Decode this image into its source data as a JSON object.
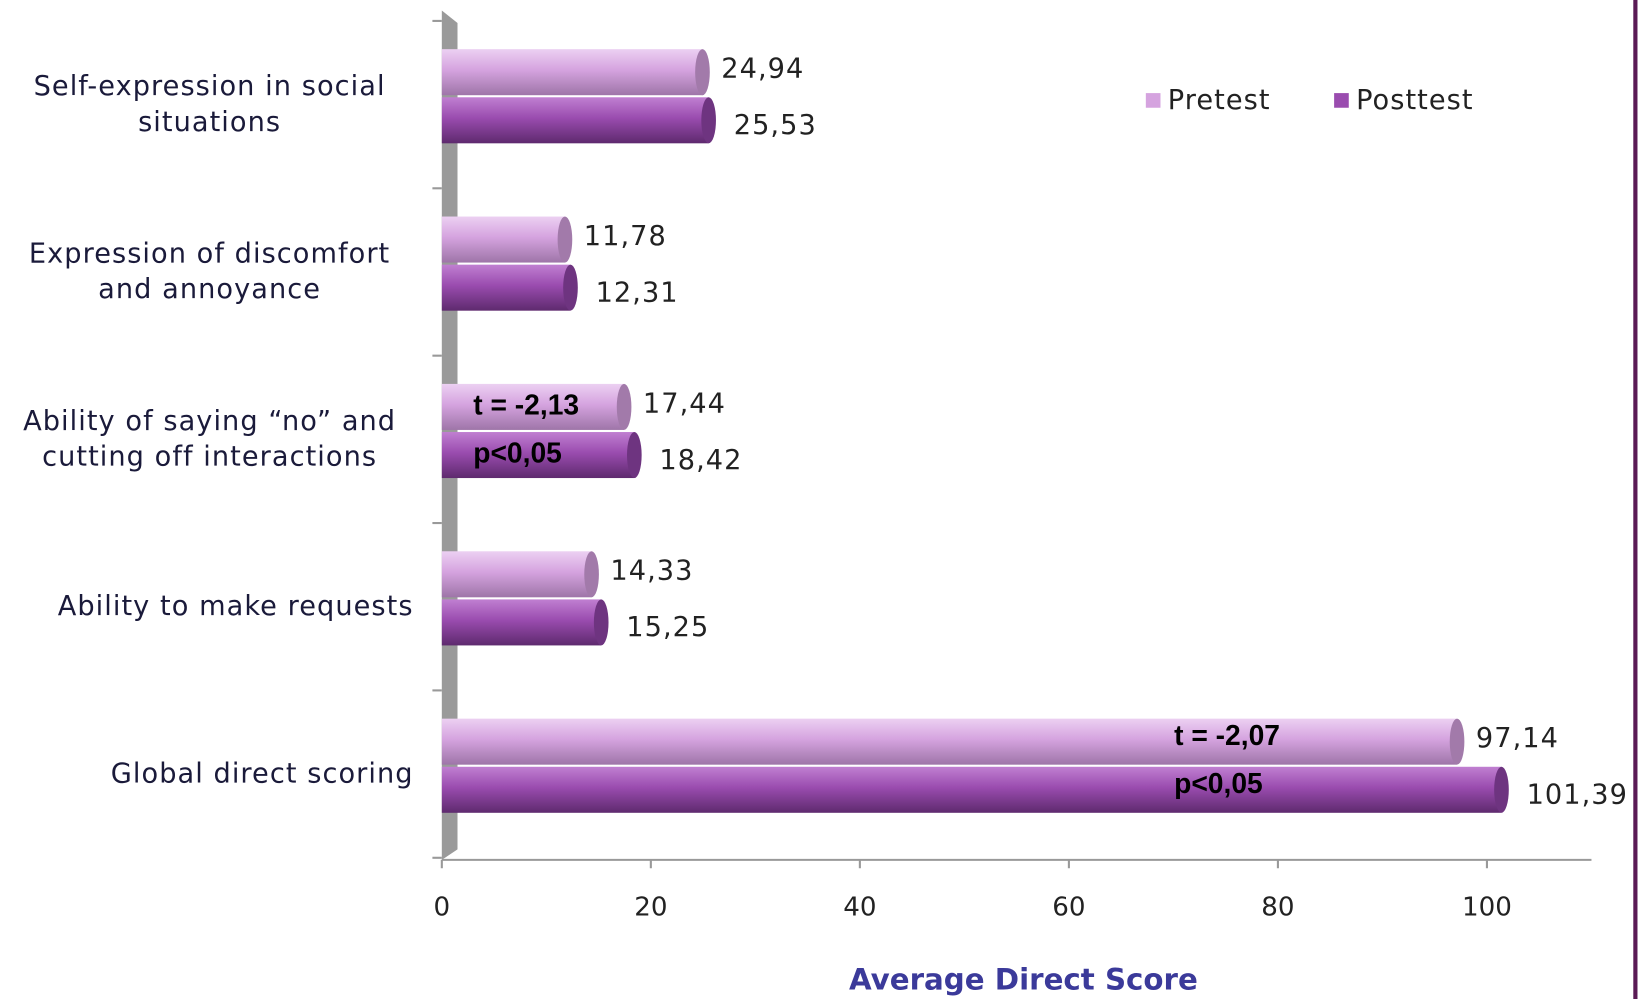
{
  "chart_data": {
    "type": "hbar",
    "categories": [
      "Self-expression in social situations",
      "Expression of discomfort and annoyance",
      "Ability of saying “no” and cutting off interactions",
      "Ability to make requests",
      "Global direct scoring"
    ],
    "series": [
      {
        "name": "Pretest",
        "color": "#d5a3df",
        "values": [
          24.94,
          11.78,
          17.44,
          14.33,
          97.14
        ],
        "value_labels": [
          "24,94",
          "11,78",
          "17,44",
          "14,33",
          "97,14"
        ]
      },
      {
        "name": "Posttest",
        "color": "#9a4caf",
        "values": [
          25.53,
          12.31,
          18.42,
          15.25,
          101.39
        ],
        "value_labels": [
          "25,53",
          "12,31",
          "18,42",
          "15,25",
          "101,39"
        ]
      }
    ],
    "annotations": [
      null,
      null,
      [
        "t = -2,13",
        "p<0,05"
      ],
      null,
      [
        "t = -2,07",
        "p<0,05"
      ]
    ],
    "x_label": "Average Direct Score",
    "xlim": [
      0,
      110
    ],
    "xticks": [
      0,
      20,
      40,
      60,
      80,
      100
    ],
    "legend": "top-right"
  }
}
